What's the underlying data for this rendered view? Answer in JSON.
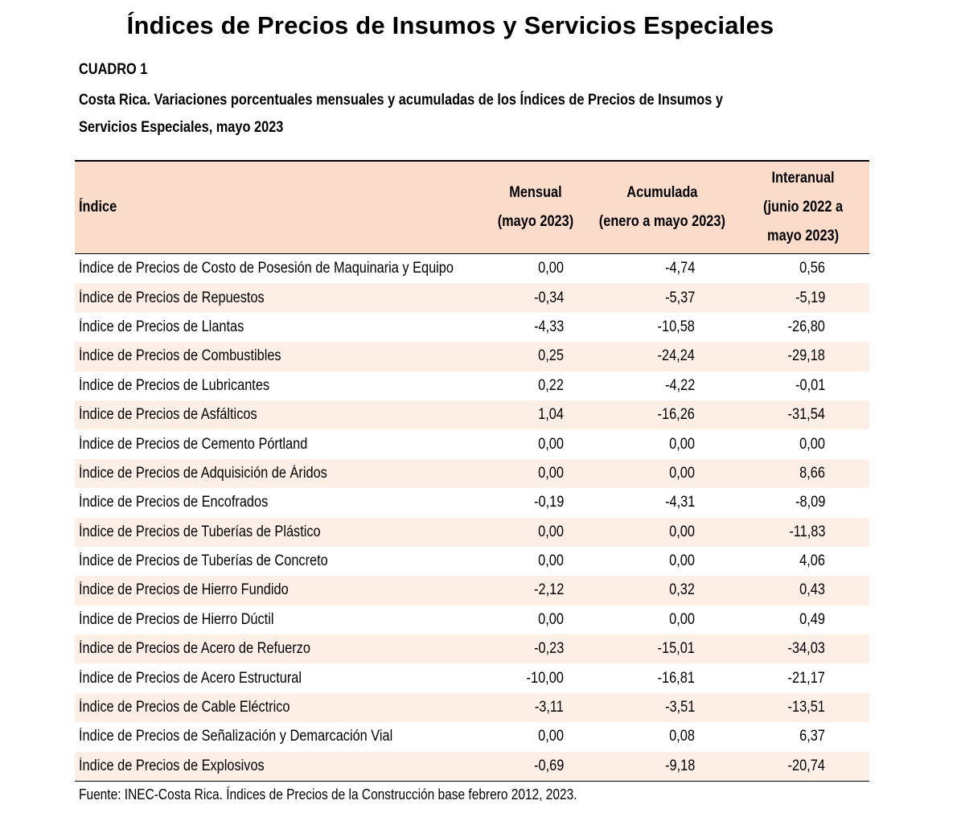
{
  "document": {
    "title": "Índices de Precios de Insumos y Servicios Especiales",
    "table_label": "CUADRO 1",
    "table_caption_line1": "Costa Rica. Variaciones porcentuales mensuales y acumuladas de los Índices de Precios de Insumos y",
    "table_caption_line2": "Servicios Especiales, mayo 2023",
    "headers": {
      "index": "Índice",
      "monthly_line1": "Mensual",
      "monthly_line2": "(mayo 2023)",
      "accumulated_line1": "Acumulada",
      "accumulated_line2": "(enero a mayo 2023)",
      "interannual_line1": "Interanual",
      "interannual_line2": "(junio 2022 a",
      "interannual_line3": "mayo 2023)"
    },
    "rows": [
      {
        "name": "Índice de Precios de Costo de Posesión de Maquinaria y Equipo",
        "monthly": "0,00",
        "accumulated": "-4,74",
        "interannual": "0,56"
      },
      {
        "name": "Índice de Precios de Repuestos",
        "monthly": "-0,34",
        "accumulated": "-5,37",
        "interannual": "-5,19"
      },
      {
        "name": "Índice de Precios de Llantas",
        "monthly": "-4,33",
        "accumulated": "-10,58",
        "interannual": "-26,80"
      },
      {
        "name": "Índice de Precios de Combustibles",
        "monthly": "0,25",
        "accumulated": "-24,24",
        "interannual": "-29,18"
      },
      {
        "name": "Índice de Precios de Lubricantes",
        "monthly": "0,22",
        "accumulated": "-4,22",
        "interannual": "-0,01"
      },
      {
        "name": "Índice de Precios de Asfálticos",
        "monthly": "1,04",
        "accumulated": "-16,26",
        "interannual": "-31,54"
      },
      {
        "name": "Índice de Precios de Cemento Pórtland",
        "monthly": "0,00",
        "accumulated": "0,00",
        "interannual": "0,00"
      },
      {
        "name": "Índice de Precios de Adquisición de Áridos",
        "monthly": "0,00",
        "accumulated": "0,00",
        "interannual": "8,66"
      },
      {
        "name": "Índice de Precios de Encofrados",
        "monthly": "-0,19",
        "accumulated": "-4,31",
        "interannual": "-8,09"
      },
      {
        "name": "Índice de Precios de Tuberías de Plástico",
        "monthly": "0,00",
        "accumulated": "0,00",
        "interannual": "-11,83"
      },
      {
        "name": "Índice de Precios de Tuberías de Concreto",
        "monthly": "0,00",
        "accumulated": "0,00",
        "interannual": "4,06"
      },
      {
        "name": "Índice de Precios de Hierro Fundido",
        "monthly": "-2,12",
        "accumulated": "0,32",
        "interannual": "0,43"
      },
      {
        "name": "Índice de Precios de Hierro Dúctil",
        "monthly": "0,00",
        "accumulated": "0,00",
        "interannual": "0,49"
      },
      {
        "name": "Índice de Precios de Acero de Refuerzo",
        "monthly": "-0,23",
        "accumulated": "-15,01",
        "interannual": "-34,03"
      },
      {
        "name": "Índice de Precios de Acero Estructural",
        "monthly": "-10,00",
        "accumulated": "-16,81",
        "interannual": "-21,17"
      },
      {
        "name": "Índice de Precios de Cable Eléctrico",
        "monthly": "-3,11",
        "accumulated": "-3,51",
        "interannual": "-13,51"
      },
      {
        "name": "Índice de Precios de Señalización y Demarcación Vial",
        "monthly": "0,00",
        "accumulated": "0,08",
        "interannual": "6,37"
      },
      {
        "name": "Índice de Precios de Explosivos",
        "monthly": "-0,69",
        "accumulated": "-9,18",
        "interannual": "-20,74"
      }
    ],
    "source": "Fuente: INEC-Costa Rica. Índices de Precios de la Construcción base febrero 2012, 2023.",
    "colors": {
      "header_background": "#fbdccb",
      "band_background": "#fdeee6"
    }
  }
}
